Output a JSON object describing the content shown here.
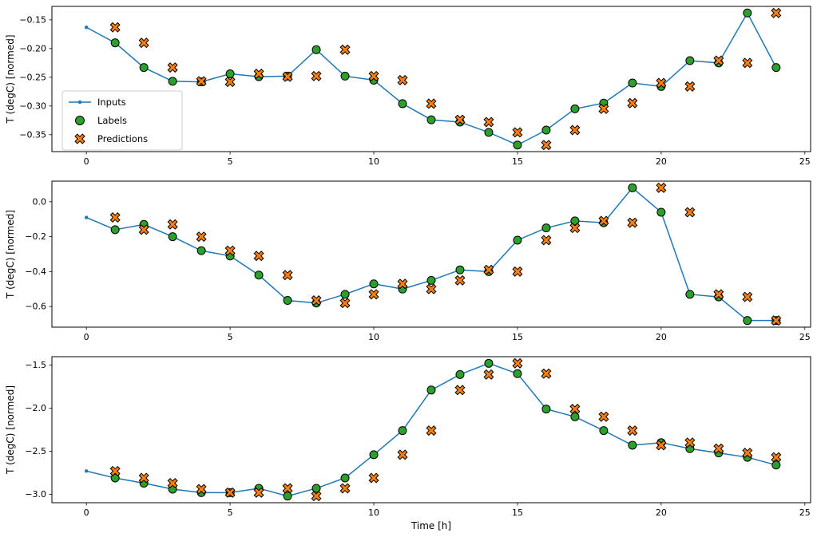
{
  "figure": {
    "background": "#ffffff",
    "description": "Three stacked time-series subplots comparing model inputs, labels and baseline predictions"
  },
  "chart_data": {
    "type": "line",
    "title": "",
    "xlabel": "Time [h]",
    "ylabel": "T (degC) [normed]",
    "grid": false,
    "xlim": [
      -1.2,
      25.2
    ],
    "xticks": [
      0,
      5,
      10,
      15,
      20,
      25
    ],
    "xticklabels": [
      "0",
      "5",
      "10",
      "15",
      "20",
      "25"
    ],
    "x_inputs": [
      0,
      1,
      2,
      3,
      4,
      5,
      6,
      7,
      8,
      9,
      10,
      11,
      12,
      13,
      14,
      15,
      16,
      17,
      18,
      19,
      20,
      21,
      22,
      23,
      24
    ],
    "x_targets": [
      1,
      2,
      3,
      4,
      5,
      6,
      7,
      8,
      9,
      10,
      11,
      12,
      13,
      14,
      15,
      16,
      17,
      18,
      19,
      20,
      21,
      22,
      23,
      24
    ],
    "colors": {
      "inputs": "#1f77b4",
      "labels": "#2ca02c",
      "predictions": "#ff7f0e",
      "marker_edge": "#000000",
      "spine": "#000000",
      "legend_border": "#cccccc"
    },
    "legend": {
      "position": "center-left-of-first-subplot",
      "entries": [
        {
          "label": "Inputs",
          "marker": "line-dot",
          "color": "#1f77b4"
        },
        {
          "label": "Labels",
          "marker": "circle",
          "color": "#2ca02c"
        },
        {
          "label": "Predictions",
          "marker": "X",
          "color": "#ff7f0e"
        }
      ]
    },
    "subplots": [
      {
        "ylabel": "T (degC) [normed]",
        "ylim": [
          -0.3795,
          -0.1265
        ],
        "yticks": [
          -0.15,
          -0.2,
          -0.25,
          -0.3,
          -0.35
        ],
        "yticklabels": [
          "−0.15",
          "−0.20",
          "−0.25",
          "−0.30",
          "−0.35"
        ],
        "inputs": [
          -0.163,
          -0.19,
          -0.233,
          -0.257,
          -0.258,
          -0.244,
          -0.249,
          -0.248,
          -0.202,
          -0.248,
          -0.255,
          -0.296,
          -0.324,
          -0.328,
          -0.346,
          -0.368,
          -0.342,
          -0.305,
          -0.295,
          -0.26,
          -0.266,
          -0.221,
          -0.225,
          -0.138,
          -0.233
        ],
        "labels": [
          -0.19,
          -0.233,
          -0.257,
          -0.258,
          -0.244,
          -0.249,
          -0.248,
          -0.202,
          -0.248,
          -0.255,
          -0.296,
          -0.324,
          -0.328,
          -0.346,
          -0.368,
          -0.342,
          -0.305,
          -0.295,
          -0.26,
          -0.266,
          -0.221,
          -0.225,
          -0.138,
          -0.233
        ],
        "predictions": [
          -0.163,
          -0.19,
          -0.233,
          -0.257,
          -0.258,
          -0.244,
          -0.249,
          -0.248,
          -0.202,
          -0.248,
          -0.255,
          -0.296,
          -0.324,
          -0.328,
          -0.346,
          -0.368,
          -0.342,
          -0.305,
          -0.295,
          -0.26,
          -0.266,
          -0.221,
          -0.225,
          -0.138
        ]
      },
      {
        "ylabel": "T (degC) [normed]",
        "ylim": [
          -0.718,
          0.118
        ],
        "yticks": [
          0.0,
          -0.2,
          -0.4,
          -0.6
        ],
        "yticklabels": [
          "0.0",
          "−0.2",
          "−0.4",
          "−0.6"
        ],
        "inputs": [
          -0.09,
          -0.16,
          -0.13,
          -0.2,
          -0.28,
          -0.31,
          -0.42,
          -0.565,
          -0.58,
          -0.53,
          -0.47,
          -0.5,
          -0.45,
          -0.39,
          -0.4,
          -0.22,
          -0.15,
          -0.11,
          -0.12,
          0.08,
          -0.06,
          -0.53,
          -0.545,
          -0.68,
          -0.68
        ],
        "labels": [
          -0.16,
          -0.13,
          -0.2,
          -0.28,
          -0.31,
          -0.42,
          -0.565,
          -0.58,
          -0.53,
          -0.47,
          -0.5,
          -0.45,
          -0.39,
          -0.4,
          -0.22,
          -0.15,
          -0.11,
          -0.12,
          0.08,
          -0.06,
          -0.53,
          -0.545,
          -0.68,
          -0.68
        ],
        "predictions": [
          -0.09,
          -0.16,
          -0.13,
          -0.2,
          -0.28,
          -0.31,
          -0.42,
          -0.565,
          -0.58,
          -0.53,
          -0.47,
          -0.5,
          -0.45,
          -0.39,
          -0.4,
          -0.22,
          -0.15,
          -0.11,
          -0.12,
          0.08,
          -0.06,
          -0.53,
          -0.545,
          -0.68
        ]
      },
      {
        "ylabel": "T (degC) [normed]",
        "ylim": [
          -3.097,
          -1.403
        ],
        "yticks": [
          -1.5,
          -2.0,
          -2.5,
          -3.0
        ],
        "yticklabels": [
          "−1.5",
          "−2.0",
          "−2.5",
          "−3.0"
        ],
        "inputs": [
          -2.73,
          -2.81,
          -2.87,
          -2.94,
          -2.98,
          -2.98,
          -2.93,
          -3.02,
          -2.93,
          -2.81,
          -2.54,
          -2.26,
          -1.79,
          -1.61,
          -1.48,
          -1.6,
          -2.01,
          -2.1,
          -2.26,
          -2.43,
          -2.4,
          -2.47,
          -2.52,
          -2.57,
          -2.66
        ],
        "labels": [
          -2.81,
          -2.87,
          -2.94,
          -2.98,
          -2.98,
          -2.93,
          -3.02,
          -2.93,
          -2.81,
          -2.54,
          -2.26,
          -1.79,
          -1.61,
          -1.48,
          -1.6,
          -2.01,
          -2.1,
          -2.26,
          -2.43,
          -2.4,
          -2.47,
          -2.52,
          -2.57,
          -2.66
        ],
        "predictions": [
          -2.73,
          -2.81,
          -2.87,
          -2.94,
          -2.98,
          -2.98,
          -2.93,
          -3.02,
          -2.93,
          -2.81,
          -2.54,
          -2.26,
          -1.79,
          -1.61,
          -1.48,
          -1.6,
          -2.01,
          -2.1,
          -2.26,
          -2.43,
          -2.4,
          -2.47,
          -2.52,
          -2.57
        ]
      }
    ]
  }
}
